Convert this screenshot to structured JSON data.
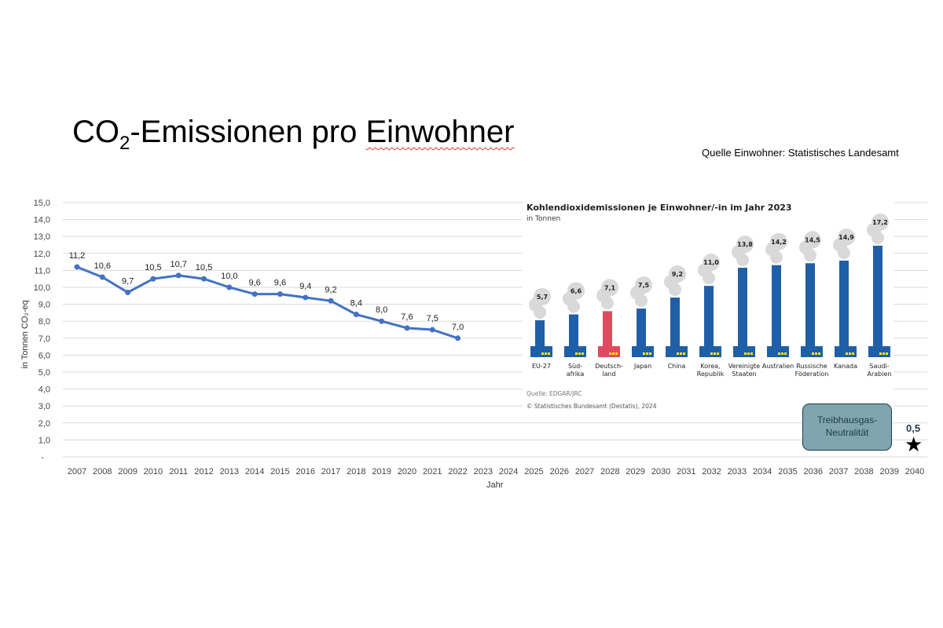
{
  "title": {
    "prefix": "CO",
    "sub": "2",
    "middle": "-Emissionen pro ",
    "last": "Einwohner"
  },
  "source": "Quelle Einwohner: Statistisches Landesamt",
  "chart_data": [
    {
      "type": "line",
      "xlabel": "Jahr",
      "ylabel": "in Tonnen CO₂-eq",
      "ylim": [
        0,
        15
      ],
      "yticks": [
        "-",
        "1,0",
        "2,0",
        "3,0",
        "4,0",
        "5,0",
        "6,0",
        "7,0",
        "8,0",
        "9,0",
        "10,0",
        "11,0",
        "12,0",
        "13,0",
        "14,0",
        "15,0"
      ],
      "grid": true,
      "categories": [
        2007,
        2008,
        2009,
        2010,
        2011,
        2012,
        2013,
        2014,
        2015,
        2016,
        2017,
        2018,
        2019,
        2020,
        2021,
        2022,
        2023,
        2024,
        2025,
        2026,
        2027,
        2028,
        2029,
        2030,
        2031,
        2032,
        2033,
        2034,
        2035,
        2036,
        2037,
        2038,
        2039,
        2040
      ],
      "series": [
        {
          "x": [
            2007,
            2008,
            2009,
            2010,
            2011,
            2012,
            2013,
            2014,
            2015,
            2016,
            2017,
            2018,
            2019,
            2020,
            2021,
            2022
          ],
          "values": [
            11.2,
            10.6,
            9.7,
            10.5,
            10.7,
            10.5,
            10.0,
            9.6,
            9.6,
            9.4,
            9.2,
            8.4,
            8.0,
            7.6,
            7.5,
            7.0
          ],
          "labels": [
            "11,2",
            "10,6",
            "9,7",
            "10,5",
            "10,7",
            "10,5",
            "10,0",
            "9,6",
            "9,6",
            "9,4",
            "9,2",
            "8,4",
            "8,0",
            "7,6",
            "7,5",
            "7,0"
          ],
          "color": "#4472c4"
        }
      ],
      "target": {
        "year": 2040,
        "value": 0.5,
        "label": "0,5",
        "marker": "star",
        "annotation": "Treibhausgas-Neutralität"
      }
    },
    {
      "type": "bar",
      "title": "Kohlendioxidemissionen je Einwohner/-in im Jahr 2023",
      "subtitle": "in Tonnen",
      "categories": [
        "EU-27",
        "Süd-|afrika",
        "Deutsch-|land",
        "Japan",
        "China",
        "Korea,|Republik",
        "Vereinigte|Staaten",
        "Australien",
        "Russische|Föderation",
        "Kanada",
        "Saudi-|Arabien"
      ],
      "values": [
        5.7,
        6.6,
        7.1,
        7.5,
        9.2,
        11.0,
        13.8,
        14.2,
        14.5,
        14.9,
        17.2
      ],
      "labels": [
        "5,7",
        "6,6",
        "7,1",
        "7,5",
        "9,2",
        "11,0",
        "13,8",
        "14,2",
        "14,5",
        "14,9",
        "17,2"
      ],
      "highlight": "Deutsch-|land",
      "colors": {
        "bar": "#1f5fa8",
        "highlight": "#e04a5f",
        "smoke": "#d9d9d9"
      },
      "source": "Quelle: EDGAR/JRC",
      "copyright": "© Statistisches Bundesamt (Destatis), 2024"
    }
  ]
}
